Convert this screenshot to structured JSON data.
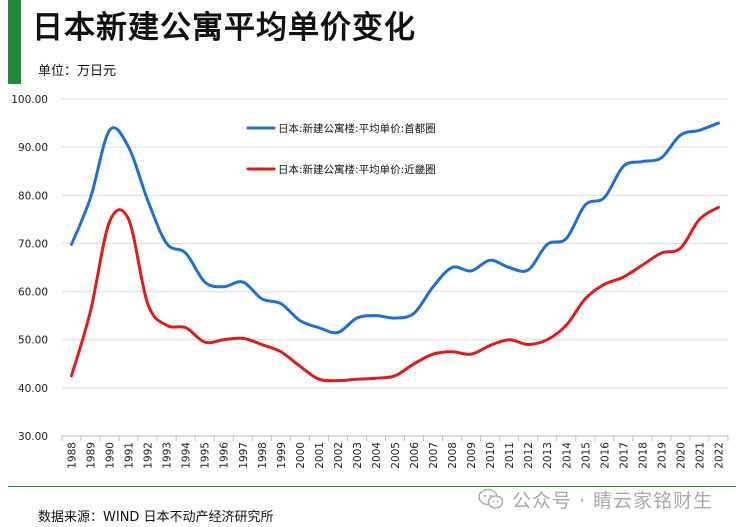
{
  "title": "日本新建公寓平均单价变化",
  "unit_label": "单位：万日元",
  "source": "数据来源：WIND 日本不动产经济研究所",
  "watermark": "公众号 · 睛云家铭财生",
  "colors": {
    "accent": "#1f8a3a",
    "tokyo": "#1f6fd6",
    "kinki": "#e01b1b",
    "grid": "#d9d9d9"
  },
  "chart_data": {
    "type": "line",
    "title": "日本新建公寓平均单价变化",
    "ylabel": "单位：万日元",
    "xlabel": "",
    "ylim": [
      30,
      100
    ],
    "yticks": [
      "100.00",
      "90.00",
      "80.00",
      "70.00",
      "60.00",
      "50.00",
      "40.00",
      "30.00"
    ],
    "grid": true,
    "legend_position": "top-center",
    "x": [
      "1988",
      "1989",
      "1990",
      "1991",
      "1992",
      "1993",
      "1994",
      "1995",
      "1996",
      "1997",
      "1998",
      "1999",
      "2000",
      "2001",
      "2002",
      "2003",
      "2004",
      "2005",
      "2006",
      "2007",
      "2008",
      "2009",
      "2010",
      "2011",
      "2012",
      "2013",
      "2014",
      "2015",
      "2016",
      "2017",
      "2018",
      "2019",
      "2020",
      "2021",
      "2022"
    ],
    "series": [
      {
        "name": "日本:新建公寓楼:平均单价:首都圈",
        "color": "#1f6fd6",
        "values": [
          69.8,
          79.5,
          93.5,
          90.0,
          79.0,
          70.0,
          68.0,
          62.0,
          61.0,
          62.0,
          58.5,
          57.5,
          54.0,
          52.5,
          51.5,
          54.5,
          55.0,
          54.5,
          55.5,
          61.0,
          65.0,
          64.3,
          66.5,
          65.0,
          64.5,
          69.8,
          71.0,
          78.0,
          79.5,
          86.0,
          87.0,
          87.8,
          92.5,
          93.5,
          95.0
        ]
      },
      {
        "name": "日本:新建公寓楼:平均单价:近畿圈",
        "color": "#e01b1b",
        "values": [
          42.5,
          56.0,
          74.5,
          75.0,
          57.5,
          53.0,
          52.5,
          49.5,
          50.0,
          50.3,
          49.0,
          47.5,
          44.5,
          41.8,
          41.5,
          41.8,
          42.0,
          42.5,
          45.0,
          47.0,
          47.5,
          47.0,
          48.8,
          50.0,
          49.0,
          50.0,
          53.0,
          58.5,
          61.5,
          63.0,
          65.5,
          68.0,
          69.0,
          75.0,
          77.5
        ]
      }
    ]
  }
}
